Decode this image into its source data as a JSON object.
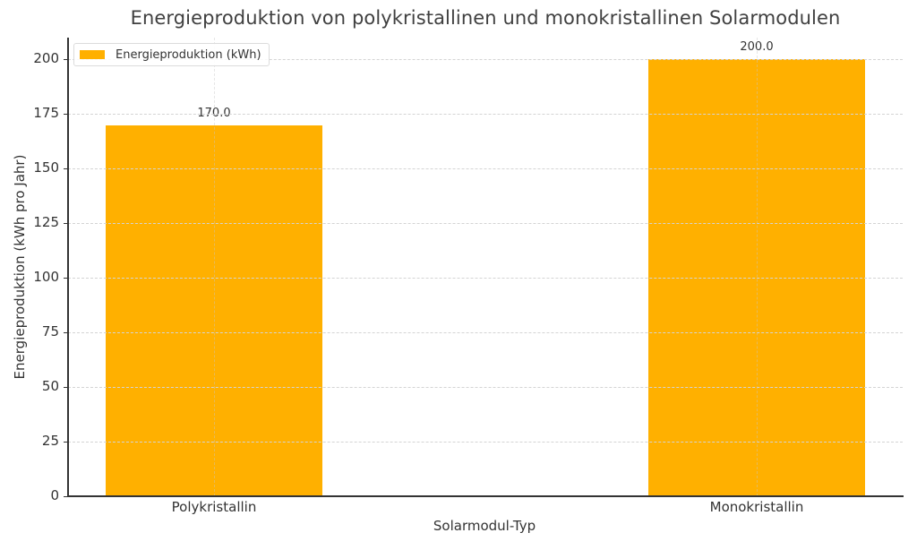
{
  "chart_data": {
    "type": "bar",
    "title": "Energieproduktion von polykristallinen und monokristallinen Solarmodulen",
    "xlabel": "Solarmodul-Typ",
    "ylabel": "Energieproduktion (kWh pro Jahr)",
    "categories": [
      "Polykristallin",
      "Monokristallin"
    ],
    "values": [
      170.0,
      200.0
    ],
    "value_labels": [
      "170.0",
      "200.0"
    ],
    "series": [
      {
        "name": "Energieproduktion (kWh)",
        "values": [
          170.0,
          200.0
        ],
        "color": "#FFB000"
      }
    ],
    "ylim": [
      0,
      210
    ],
    "yticks": [
      "0",
      "25",
      "50",
      "75",
      "100",
      "125",
      "150",
      "175",
      "200"
    ],
    "grid": true,
    "legend_position": "upper left"
  },
  "colors": {
    "bar": "#FFB000",
    "axis": "#333333",
    "grid": "#d4d4d4"
  }
}
